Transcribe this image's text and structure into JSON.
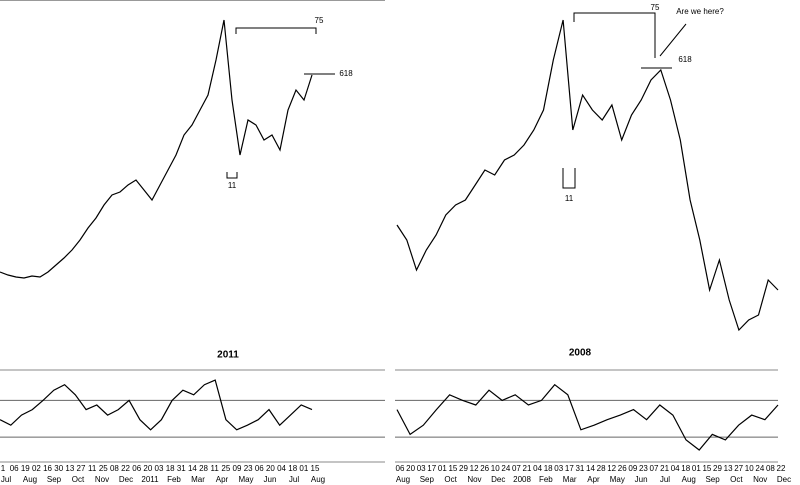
{
  "chart_data": [
    {
      "type": "line",
      "title": "2011",
      "price": {
        "color": "#000000",
        "ylim": [
          0,
          340
        ],
        "values": [
          68,
          65,
          63,
          62,
          64,
          63,
          68,
          75,
          82,
          90,
          100,
          112,
          122,
          135,
          145,
          148,
          155,
          160,
          150,
          140,
          155,
          170,
          185,
          205,
          215,
          230,
          245,
          280,
          320,
          240,
          185,
          220,
          215,
          200,
          205,
          190,
          230,
          250,
          240,
          265
        ]
      },
      "indicator": {
        "color": "#000000",
        "ylim": [
          0,
          100
        ],
        "levels": [
          67,
          27
        ],
        "values": [
          46,
          40,
          51,
          57,
          67,
          78,
          84,
          73,
          57,
          62,
          51,
          57,
          67,
          46,
          35,
          46,
          67,
          78,
          73,
          84,
          89,
          46,
          35,
          40,
          46,
          57,
          40,
          51,
          62,
          57
        ]
      },
      "xlabels": [
        "1",
        "06",
        "19",
        "02",
        "16",
        "30",
        "13",
        "27",
        "11",
        "25",
        "08",
        "22",
        "06",
        "20",
        "03",
        "18",
        "31",
        "14",
        "28",
        "11",
        "25",
        "09",
        "23",
        "06",
        "20",
        "04",
        "18",
        "01",
        "15"
      ],
      "months": [
        "Jul",
        "Aug",
        "Sep",
        "Oct",
        "Nov",
        "Dec",
        "2011",
        "Feb",
        "Mar",
        "Apr",
        "May",
        "Jun",
        "Jul",
        "Aug"
      ],
      "annotations": [
        "75",
        "618",
        "11"
      ]
    },
    {
      "type": "line",
      "title": "2008",
      "price": {
        "color": "#000000",
        "ylim": [
          0,
          340
        ],
        "values": [
          115,
          100,
          70,
          90,
          105,
          125,
          135,
          140,
          155,
          170,
          165,
          180,
          185,
          195,
          210,
          230,
          280,
          320,
          210,
          245,
          230,
          220,
          235,
          200,
          225,
          240,
          260,
          270,
          240,
          200,
          140,
          100,
          50,
          80,
          40,
          10,
          20,
          25,
          60,
          50
        ]
      },
      "indicator": {
        "color": "#000000",
        "ylim": [
          0,
          100
        ],
        "levels": [
          67,
          27
        ],
        "values": [
          57,
          30,
          40,
          57,
          73,
          67,
          62,
          78,
          67,
          73,
          62,
          67,
          84,
          73,
          35,
          40,
          46,
          51,
          57,
          46,
          62,
          51,
          24,
          13,
          30,
          24,
          40,
          51,
          46,
          62
        ]
      },
      "xlabels": [
        "06",
        "20",
        "03",
        "17",
        "01",
        "15",
        "29",
        "12",
        "26",
        "10",
        "24",
        "07",
        "21",
        "04",
        "18",
        "03",
        "17",
        "31",
        "14",
        "28",
        "12",
        "26",
        "09",
        "23",
        "07",
        "21",
        "04",
        "18",
        "01",
        "15",
        "29",
        "13",
        "27",
        "10",
        "24",
        "08",
        "22"
      ],
      "months": [
        "Aug",
        "Sep",
        "Oct",
        "Nov",
        "Dec",
        "2008",
        "Feb",
        "Mar",
        "Apr",
        "May",
        "Jun",
        "Jul",
        "Aug",
        "Sep",
        "Oct",
        "Nov",
        "Dec"
      ],
      "annotations": [
        "75",
        "618",
        "11",
        "Are we here?"
      ]
    }
  ]
}
